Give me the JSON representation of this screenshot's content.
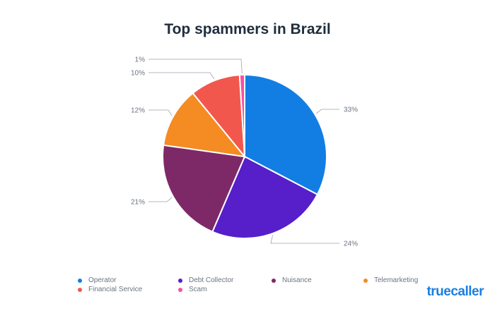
{
  "chart_data": {
    "type": "pie",
    "title": "Top spammers in Brazil",
    "slices": [
      {
        "label": "Operator",
        "value": 33,
        "display": "33%",
        "color": "#127ee3"
      },
      {
        "label": "Debt Collector",
        "value": 24,
        "display": "24%",
        "color": "#561fc9"
      },
      {
        "label": "Nuisance",
        "value": 21,
        "display": "21%",
        "color": "#7e2967"
      },
      {
        "label": "Telemarketing",
        "value": 12,
        "display": "12%",
        "color": "#f48b23"
      },
      {
        "label": "Financial Service",
        "value": 10,
        "display": "10%",
        "color": "#f2574d"
      },
      {
        "label": "Scam",
        "value": 1,
        "display": "1%",
        "color": "#f74fa3"
      }
    ],
    "legend_position": "bottom"
  },
  "brand": {
    "name": "truecaller"
  }
}
